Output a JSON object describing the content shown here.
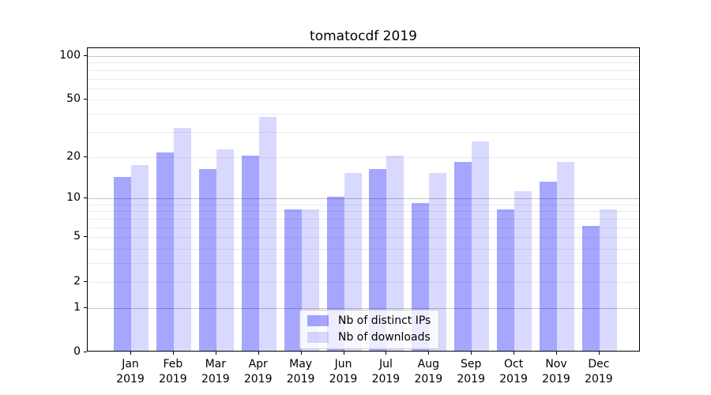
{
  "title": "tomatocdf 2019",
  "legend": {
    "items": [
      {
        "label": "Nb of distinct IPs",
        "color": "rgba(0,0,255,0.35)"
      },
      {
        "label": "Nb of downloads",
        "color": "rgba(0,0,255,0.15)"
      }
    ]
  },
  "chart_data": {
    "type": "bar",
    "title": "tomatocdf 2019",
    "xlabel": "",
    "ylabel": "",
    "scale": "log10(1+y) (symlog-like, 0 at baseline)",
    "categories": [
      "Jan",
      "Feb",
      "Mar",
      "Apr",
      "May",
      "Jun",
      "Jul",
      "Aug",
      "Sep",
      "Oct",
      "Nov",
      "Dec"
    ],
    "x_year_line": "2019",
    "series": [
      {
        "name": "Nb of distinct IPs",
        "values": [
          14,
          21,
          16,
          20,
          8,
          10,
          16,
          9,
          18,
          8,
          13,
          6
        ]
      },
      {
        "name": "Nb of downloads",
        "values": [
          17,
          31,
          22,
          37,
          8,
          15,
          20,
          15,
          25,
          11,
          18,
          8
        ]
      }
    ],
    "y_tick_values": [
      0,
      1,
      2,
      5,
      10,
      20,
      50,
      100
    ],
    "y_decade_grid": [
      1,
      10,
      100
    ],
    "y_minor_grid": [
      2,
      3,
      4,
      5,
      6,
      7,
      8,
      9,
      20,
      30,
      40,
      50,
      60,
      70,
      80,
      90
    ],
    "ylim": [
      0,
      113
    ],
    "grid": true,
    "legend_position": "lower center"
  },
  "colors": {
    "bar_dark": "rgba(0,0,255,0.35)",
    "bar_light": "rgba(0,0,255,0.15)",
    "grid_decade": "#c4c4c4",
    "grid_minor": "#ebebeb",
    "spine": "#000000"
  }
}
